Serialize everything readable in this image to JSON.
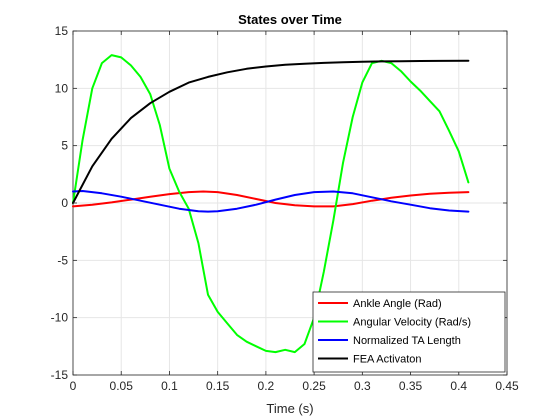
{
  "chart_data": {
    "type": "line",
    "title": "States over Time",
    "xlabel": "Time (s)",
    "ylabel": "",
    "xlim": [
      0,
      0.45
    ],
    "ylim": [
      -15,
      15
    ],
    "xticks": [
      0,
      0.05,
      0.1,
      0.15,
      0.2,
      0.25,
      0.3,
      0.35,
      0.4,
      0.45
    ],
    "xtick_labels": [
      "0",
      "0.05",
      "0.1",
      "0.15",
      "0.2",
      "0.25",
      "0.3",
      "0.35",
      "0.4",
      "0.45"
    ],
    "yticks": [
      -15,
      -10,
      -5,
      0,
      5,
      10,
      15
    ],
    "ytick_labels": [
      "-15",
      "-10",
      "-5",
      "0",
      "5",
      "10",
      "15"
    ],
    "grid": true,
    "legend_position": "bottom-right",
    "series": [
      {
        "name": "Ankle Angle (Rad)",
        "color": "#ff0000",
        "x": [
          0,
          0.02,
          0.04,
          0.06,
          0.08,
          0.1,
          0.12,
          0.135,
          0.15,
          0.17,
          0.19,
          0.21,
          0.23,
          0.25,
          0.27,
          0.29,
          0.31,
          0.33,
          0.35,
          0.37,
          0.39,
          0.41
        ],
        "y": [
          -0.3,
          -0.15,
          0.05,
          0.3,
          0.55,
          0.78,
          0.95,
          1.0,
          0.95,
          0.7,
          0.35,
          0.0,
          -0.2,
          -0.3,
          -0.3,
          -0.1,
          0.2,
          0.45,
          0.65,
          0.8,
          0.9,
          0.95
        ]
      },
      {
        "name": "Angular Velocity (Rad/s)",
        "color": "#00ff00",
        "x": [
          0,
          0.01,
          0.02,
          0.03,
          0.04,
          0.05,
          0.06,
          0.07,
          0.08,
          0.09,
          0.1,
          0.11,
          0.12,
          0.13,
          0.14,
          0.15,
          0.16,
          0.17,
          0.18,
          0.19,
          0.2,
          0.21,
          0.22,
          0.23,
          0.24,
          0.25,
          0.26,
          0.27,
          0.28,
          0.29,
          0.3,
          0.31,
          0.32,
          0.33,
          0.34,
          0.35,
          0.36,
          0.37,
          0.38,
          0.39,
          0.4,
          0.41
        ],
        "y": [
          0,
          5.5,
          10.0,
          12.2,
          12.9,
          12.7,
          12.0,
          11.0,
          9.5,
          6.8,
          3.0,
          1.0,
          -0.5,
          -3.5,
          -8.0,
          -9.5,
          -10.5,
          -11.5,
          -12.1,
          -12.5,
          -12.9,
          -13.0,
          -12.8,
          -13.0,
          -12.3,
          -10.0,
          -6.0,
          -1.5,
          3.5,
          7.5,
          10.5,
          12.2,
          12.4,
          12.2,
          11.5,
          10.6,
          9.8,
          8.9,
          8.0,
          6.3,
          4.5,
          1.8
        ]
      },
      {
        "name": "Normalized TA Length",
        "color": "#0000ff",
        "x": [
          0,
          0.01,
          0.03,
          0.05,
          0.07,
          0.09,
          0.11,
          0.13,
          0.14,
          0.15,
          0.17,
          0.19,
          0.21,
          0.23,
          0.25,
          0.27,
          0.29,
          0.31,
          0.33,
          0.35,
          0.37,
          0.39,
          0.41
        ],
        "y": [
          1.0,
          1.05,
          0.85,
          0.55,
          0.2,
          -0.15,
          -0.5,
          -0.72,
          -0.75,
          -0.72,
          -0.5,
          -0.15,
          0.3,
          0.7,
          0.95,
          1.0,
          0.85,
          0.5,
          0.15,
          -0.15,
          -0.45,
          -0.65,
          -0.75
        ]
      },
      {
        "name": "FEA Activaton",
        "color": "#000000",
        "x": [
          0,
          0.02,
          0.04,
          0.06,
          0.08,
          0.1,
          0.12,
          0.14,
          0.16,
          0.18,
          0.2,
          0.22,
          0.24,
          0.26,
          0.28,
          0.3,
          0.32,
          0.34,
          0.36,
          0.38,
          0.41
        ],
        "y": [
          0,
          3.2,
          5.6,
          7.4,
          8.7,
          9.7,
          10.5,
          11.0,
          11.4,
          11.7,
          11.9,
          12.05,
          12.15,
          12.22,
          12.28,
          12.32,
          12.35,
          12.37,
          12.38,
          12.39,
          12.4
        ]
      }
    ]
  }
}
